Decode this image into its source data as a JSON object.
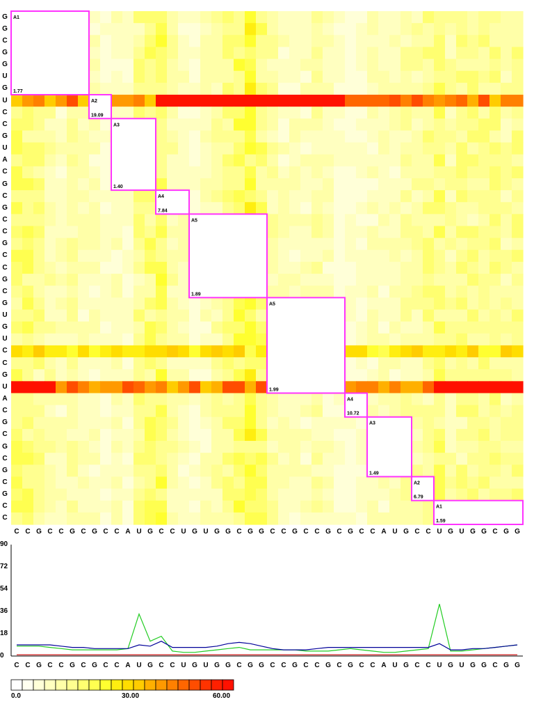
{
  "matrix": {
    "row_sequence": [
      "G",
      "G",
      "C",
      "G",
      "G",
      "U",
      "G",
      "U",
      "C",
      "C",
      "G",
      "U",
      "A",
      "C",
      "G",
      "C",
      "G",
      "C",
      "C",
      "G",
      "C",
      "C",
      "G",
      "C",
      "G",
      "U",
      "G",
      "U",
      "C",
      "C",
      "G",
      "U",
      "A",
      "C",
      "G",
      "C",
      "G",
      "C",
      "G",
      "C",
      "G",
      "C",
      "C"
    ],
    "col_sequence": [
      "C",
      "C",
      "G",
      "C",
      "C",
      "G",
      "C",
      "G",
      "C",
      "C",
      "A",
      "U",
      "G",
      "C",
      "C",
      "U",
      "G",
      "U",
      "G",
      "G",
      "C",
      "G",
      "G",
      "C",
      "C",
      "G",
      "C",
      "C",
      "G",
      "C",
      "G",
      "C",
      "C",
      "A",
      "U",
      "G",
      "C",
      "C",
      "U",
      "G",
      "U",
      "G",
      "G",
      "C",
      "G",
      "G"
    ],
    "blocks": [
      {
        "label": "A1",
        "value": "1.77"
      },
      {
        "label": "A2",
        "value": "19.09"
      },
      {
        "label": "A3",
        "value": "1.40"
      },
      {
        "label": "A4",
        "value": "7.84"
      },
      {
        "label": "A5",
        "value": "1.89"
      },
      {
        "label": "A5",
        "value": "1.99"
      },
      {
        "label": "A4",
        "value": "10.72"
      },
      {
        "label": "A3",
        "value": "1.49"
      },
      {
        "label": "A2",
        "value": "6.79"
      },
      {
        "label": "A1",
        "value": "1.59"
      }
    ],
    "hot_rows": [
      "U",
      "C"
    ],
    "block_color": "#ff33ff"
  },
  "profile": {
    "y_ticks": [
      "90",
      "72",
      "54",
      "36",
      "18",
      "0"
    ],
    "x_sequence": [
      "C",
      "C",
      "G",
      "C",
      "C",
      "G",
      "C",
      "G",
      "C",
      "C",
      "A",
      "U",
      "G",
      "C",
      "C",
      "U",
      "G",
      "U",
      "G",
      "G",
      "C",
      "G",
      "G",
      "C",
      "C",
      "G",
      "C",
      "C",
      "G",
      "C",
      "G",
      "C",
      "C",
      "A",
      "U",
      "G",
      "C",
      "C",
      "U",
      "G",
      "U",
      "G",
      "G",
      "C",
      "G",
      "G"
    ],
    "series": [
      {
        "color": "#22cc22",
        "values": [
          8,
          8,
          8,
          7,
          6,
          5,
          5,
          5,
          5,
          5,
          6,
          34,
          12,
          16,
          4,
          3,
          3,
          4,
          5,
          6,
          7,
          5,
          5,
          5,
          5,
          5,
          4,
          4,
          4,
          5,
          6,
          5,
          4,
          3,
          3,
          4,
          5,
          6,
          42,
          4,
          4,
          5,
          6,
          7,
          8,
          9
        ]
      },
      {
        "color": "#000099",
        "values": [
          9,
          9,
          9,
          9,
          8,
          7,
          7,
          6,
          6,
          6,
          6,
          9,
          8,
          12,
          7,
          7,
          7,
          7,
          8,
          10,
          11,
          10,
          8,
          6,
          5,
          5,
          5,
          6,
          7,
          7,
          7,
          7,
          7,
          7,
          7,
          7,
          7,
          7,
          10,
          5,
          5,
          6,
          6,
          7,
          8,
          9
        ]
      },
      {
        "color": "#cc0000",
        "values": [
          1,
          1,
          1,
          1,
          1,
          1,
          1,
          1,
          1,
          1,
          1,
          1,
          1,
          1,
          1,
          1,
          1,
          1,
          1,
          1,
          1,
          1,
          1,
          1,
          1,
          1,
          1,
          1,
          1,
          1,
          1,
          1,
          1,
          1,
          1,
          1,
          1,
          1,
          1,
          1,
          1,
          1,
          1,
          1,
          1,
          1
        ]
      }
    ],
    "y_max": 90
  },
  "legend": {
    "min_label": "0.0",
    "mid_label": "30.00",
    "max_label": "60.00",
    "colors": [
      "#ffffff",
      "#fffff0",
      "#ffffd8",
      "#ffffc0",
      "#ffffa8",
      "#ffff90",
      "#ffff70",
      "#ffff50",
      "#ffff30",
      "#ffee10",
      "#ffdd00",
      "#ffcc00",
      "#ffb000",
      "#ff9900",
      "#ff8000",
      "#ff6600",
      "#ff4d00",
      "#ff3300",
      "#ff2000",
      "#ff1100"
    ]
  }
}
